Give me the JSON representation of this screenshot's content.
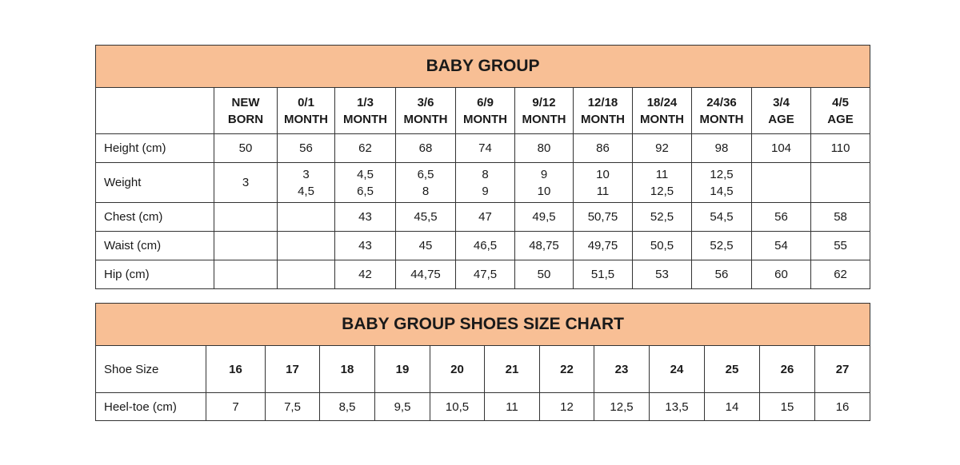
{
  "size_chart": {
    "title": "BABY GROUP",
    "columns": [
      [
        "NEW",
        "BORN"
      ],
      [
        "0/1",
        "MONTH"
      ],
      [
        "1/3",
        "MONTH"
      ],
      [
        "3/6",
        "MONTH"
      ],
      [
        "6/9",
        "MONTH"
      ],
      [
        "9/12",
        "MONTH"
      ],
      [
        "12/18",
        "MONTH"
      ],
      [
        "18/24",
        "MONTH"
      ],
      [
        "24/36",
        "MONTH"
      ],
      [
        "3/4",
        "AGE"
      ],
      [
        "4/5",
        "AGE"
      ]
    ],
    "rows": [
      {
        "label": "Height (cm)",
        "values": [
          [
            "50"
          ],
          [
            "56"
          ],
          [
            "62"
          ],
          [
            "68"
          ],
          [
            "74"
          ],
          [
            "80"
          ],
          [
            "86"
          ],
          [
            "92"
          ],
          [
            "98"
          ],
          [
            "104"
          ],
          [
            "110"
          ]
        ]
      },
      {
        "label": "Weight",
        "values": [
          [
            "3"
          ],
          [
            "3",
            "4,5"
          ],
          [
            "4,5",
            "6,5"
          ],
          [
            "6,5",
            "8"
          ],
          [
            "8",
            "9"
          ],
          [
            "9",
            "10"
          ],
          [
            "10",
            "11"
          ],
          [
            "11",
            "12,5"
          ],
          [
            "12,5",
            "14,5"
          ],
          [],
          []
        ]
      },
      {
        "label": "Chest (cm)",
        "values": [
          [],
          [],
          [
            "43"
          ],
          [
            "45,5"
          ],
          [
            "47"
          ],
          [
            "49,5"
          ],
          [
            "50,75"
          ],
          [
            "52,5"
          ],
          [
            "54,5"
          ],
          [
            "56"
          ],
          [
            "58"
          ]
        ]
      },
      {
        "label": "Waist (cm)",
        "values": [
          [],
          [],
          [
            "43"
          ],
          [
            "45"
          ],
          [
            "46,5"
          ],
          [
            "48,75"
          ],
          [
            "49,75"
          ],
          [
            "50,5"
          ],
          [
            "52,5"
          ],
          [
            "54"
          ],
          [
            "55"
          ]
        ]
      },
      {
        "label": "Hip (cm)",
        "values": [
          [],
          [],
          [
            "42"
          ],
          [
            "44,75"
          ],
          [
            "47,5"
          ],
          [
            "50"
          ],
          [
            "51,5"
          ],
          [
            "53"
          ],
          [
            "56"
          ],
          [
            "60"
          ],
          [
            "62"
          ]
        ]
      }
    ]
  },
  "shoe_chart": {
    "title": "BABY GROUP SHOES SIZE CHART",
    "size_label": "Shoe Size",
    "sizes": [
      "16",
      "17",
      "18",
      "19",
      "20",
      "21",
      "22",
      "23",
      "24",
      "25",
      "26",
      "27"
    ],
    "heel_label": "Heel-toe (cm)",
    "heel_toe": [
      "7",
      "7,5",
      "8,5",
      "9,5",
      "10,5",
      "11",
      "12",
      "12,5",
      "13,5",
      "14",
      "15",
      "16"
    ]
  },
  "colors": {
    "header_fill": "#f8bf95",
    "border": "#333333"
  }
}
